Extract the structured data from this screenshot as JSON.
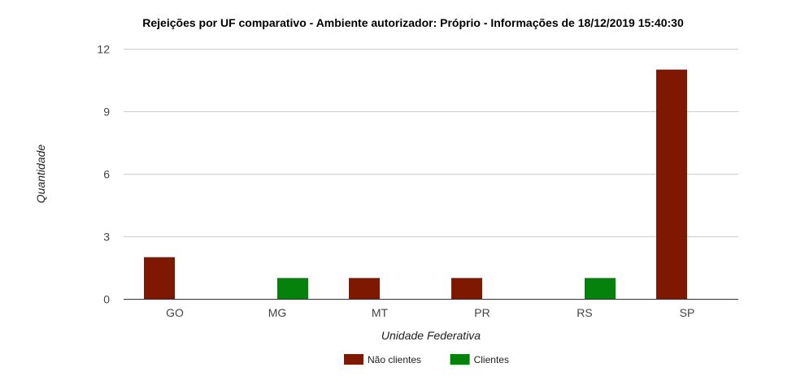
{
  "chart_data": {
    "type": "bar",
    "title": "Rejeições por UF comparativo - Ambiente autorizador: Próprio - Informações de 18/12/2019 15:40:30",
    "xlabel": "Unidade Federativa",
    "ylabel": "Quantidade",
    "categories": [
      "GO",
      "MG",
      "MT",
      "PR",
      "RS",
      "SP"
    ],
    "series": [
      {
        "name": "Não clientes",
        "color": "#7f1800",
        "values": [
          2,
          0,
          1,
          1,
          0,
          11
        ]
      },
      {
        "name": "Clientes",
        "color": "#05820b",
        "values": [
          0,
          1,
          0,
          0,
          1,
          0
        ]
      }
    ],
    "ylim": [
      0,
      12
    ],
    "yticks": [
      0,
      3,
      6,
      9,
      12
    ],
    "grid": true,
    "legend": "bottom"
  }
}
